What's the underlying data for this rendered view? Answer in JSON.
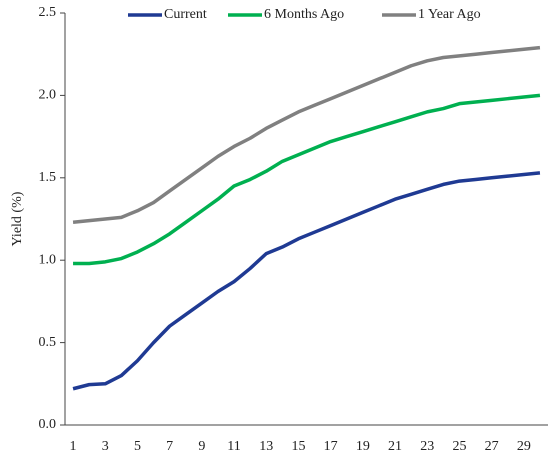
{
  "chart_data": {
    "type": "line",
    "y_label": "Yield (%)",
    "categories": [
      "1",
      null,
      "3",
      null,
      "5",
      null,
      "7",
      null,
      "9",
      null,
      "11",
      null,
      "13",
      null,
      "15",
      null,
      "17",
      null,
      "19",
      null,
      "21",
      null,
      "23",
      null,
      "25",
      null,
      "27",
      null,
      "29",
      null
    ],
    "series": [
      {
        "name": "Current",
        "color": "#1f3a93",
        "values": [
          0.22,
          0.245,
          0.25,
          0.3,
          0.39,
          0.5,
          0.6,
          0.67,
          0.74,
          0.81,
          0.87,
          0.95,
          1.04,
          1.08,
          1.13,
          1.17,
          1.21,
          1.25,
          1.29,
          1.33,
          1.37,
          1.4,
          1.43,
          1.46,
          1.48,
          1.49,
          1.5,
          1.51,
          1.52,
          1.53
        ]
      },
      {
        "name": "6 Months Ago",
        "color": "#00b050",
        "values": [
          0.98,
          0.98,
          0.99,
          1.01,
          1.05,
          1.1,
          1.16,
          1.23,
          1.3,
          1.37,
          1.45,
          1.49,
          1.54,
          1.6,
          1.64,
          1.68,
          1.72,
          1.75,
          1.78,
          1.81,
          1.84,
          1.87,
          1.9,
          1.92,
          1.95,
          1.96,
          1.97,
          1.98,
          1.99,
          2.0
        ]
      },
      {
        "name": "1 Year Ago",
        "color": "#808080",
        "values": [
          1.23,
          1.24,
          1.25,
          1.26,
          1.3,
          1.35,
          1.42,
          1.49,
          1.56,
          1.63,
          1.69,
          1.74,
          1.8,
          1.85,
          1.9,
          1.94,
          1.98,
          2.02,
          2.06,
          2.1,
          2.14,
          2.18,
          2.21,
          2.23,
          2.24,
          2.25,
          2.26,
          2.27,
          2.28,
          2.29
        ]
      }
    ],
    "ylim": [
      0,
      2.5
    ],
    "yticks": [
      {
        "value": 0,
        "label": "0.0"
      },
      0.5,
      {
        "value": 1,
        "label": "1.0"
      },
      1.5,
      {
        "value": 2,
        "label": "2.0"
      },
      2.5
    ],
    "legend": "top",
    "grid": false
  }
}
